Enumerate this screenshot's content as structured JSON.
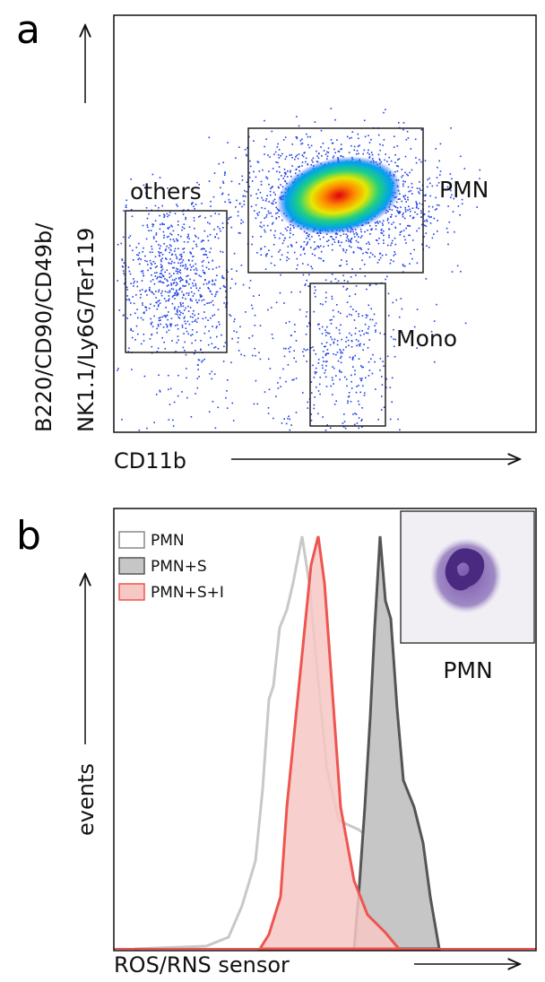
{
  "panels": {
    "a": {
      "label": "a",
      "y_axis_label": [
        "B220/CD90/CD49b/",
        "NK1.1/Ly6G/Ter119"
      ],
      "x_axis_label": "CD11b",
      "gates": [
        "others",
        "PMN",
        "Mono"
      ]
    },
    "b": {
      "label": "b",
      "legend": [
        "PMN",
        "PMN+S",
        "PMN+S+I"
      ],
      "inset_label": "PMN",
      "y_axis_label": "events",
      "x_axis_label": "ROS/RNS sensor"
    }
  }
}
